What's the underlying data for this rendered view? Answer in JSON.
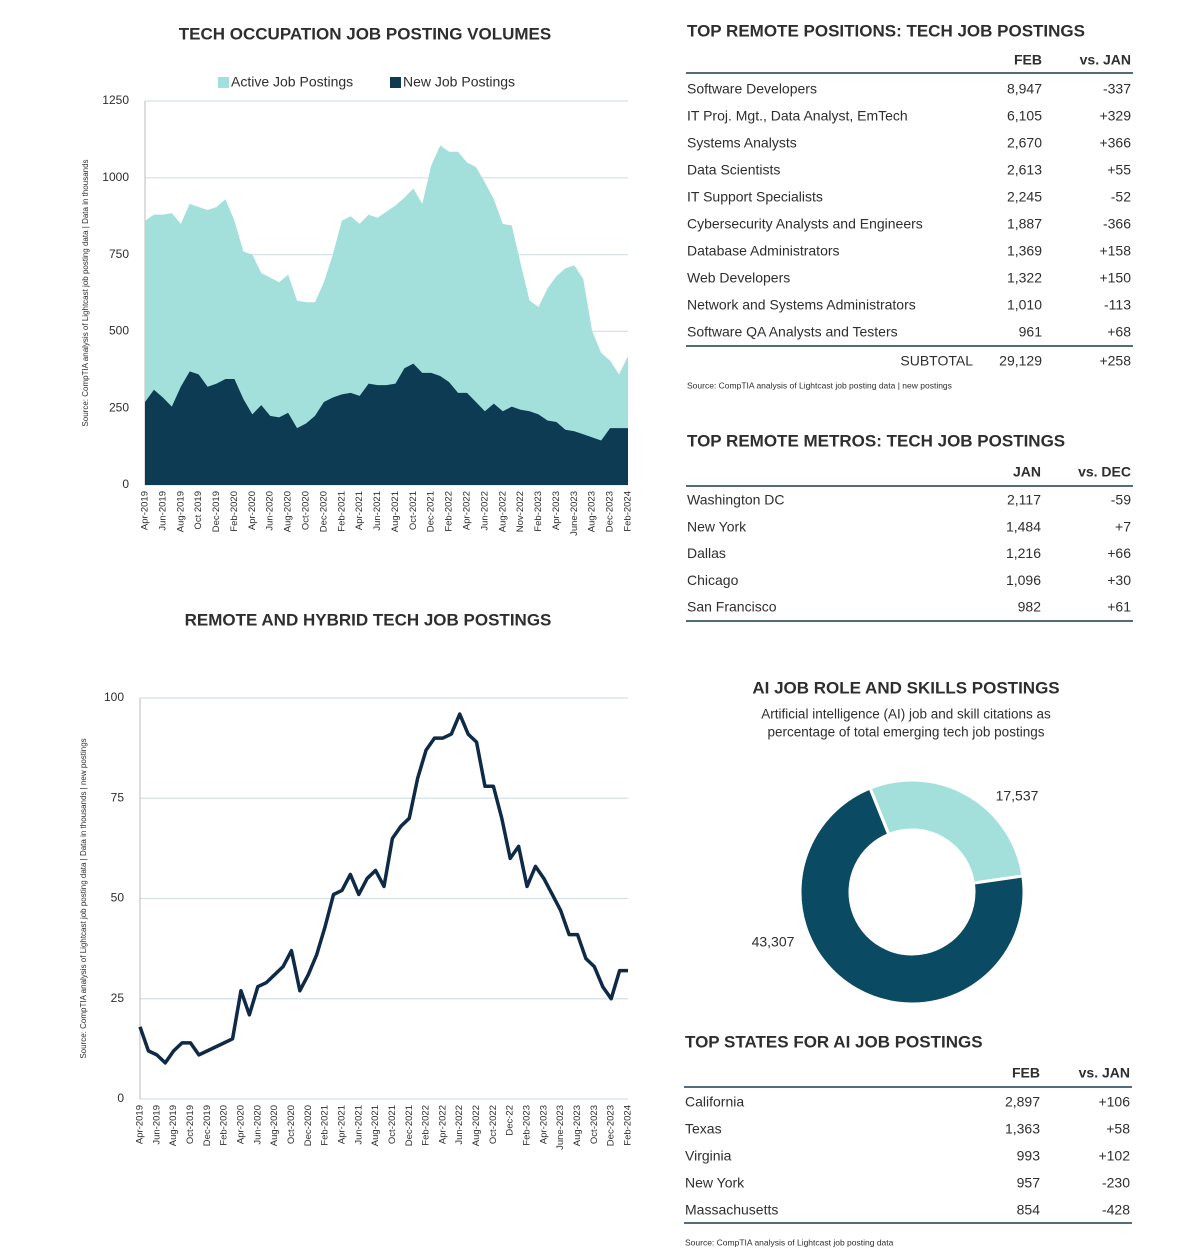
{
  "chart_data": [
    {
      "type": "area",
      "title": "TECH OCCUPATION JOB POSTING VOLUMES",
      "ylabel": "Source: CompTIA analysis of Lightcast job posting data | Data in thousands",
      "categories": [
        "Apr-2019",
        null,
        "Jun-2019",
        null,
        "Aug-2019",
        null,
        "Oct 2019",
        null,
        "Dec-2019",
        null,
        "Feb-2020",
        null,
        "Apr-2020",
        null,
        "Jun-2020",
        null,
        "Aug-2020",
        null,
        "Oct-2020",
        null,
        "Dec-2020",
        null,
        "Feb-2021",
        null,
        "Apr-2021",
        null,
        "Jun-2021",
        null,
        "Aug-2021",
        null,
        "Oct-2021",
        null,
        "Dec-2021",
        null,
        "Feb-2022",
        null,
        "Apr-2022",
        null,
        "Jun-2022",
        null,
        "Aug-2022",
        null,
        "Nov-2022",
        null,
        "Feb-2023",
        null,
        "Apr-2023",
        null,
        "June-2023",
        null,
        "Aug-2023",
        null,
        "Dec-2023",
        null,
        "Feb-2024"
      ],
      "series": [
        {
          "name": "Active Job Postings",
          "color": "#a3e0dc",
          "values": [
            860,
            880,
            880,
            885,
            850,
            915,
            905,
            895,
            905,
            930,
            860,
            760,
            750,
            690,
            675,
            660,
            685,
            600,
            595,
            595,
            660,
            750,
            860,
            875,
            850,
            880,
            870,
            890,
            910,
            935,
            965,
            915,
            1040,
            1105,
            1085,
            1085,
            1050,
            1035,
            985,
            930,
            850,
            845,
            720,
            600,
            580,
            640,
            680,
            705,
            715,
            670,
            500,
            430,
            405,
            360,
            420
          ]
        },
        {
          "name": "New Job Postings",
          "color": "#0d3b54",
          "values": [
            270,
            310,
            285,
            255,
            320,
            370,
            360,
            320,
            330,
            345,
            345,
            280,
            230,
            260,
            225,
            220,
            235,
            185,
            200,
            225,
            270,
            285,
            295,
            300,
            290,
            330,
            325,
            325,
            330,
            380,
            395,
            365,
            365,
            355,
            335,
            300,
            300,
            270,
            240,
            265,
            240,
            255,
            245,
            240,
            230,
            210,
            205,
            180,
            175,
            165,
            155,
            145,
            185,
            185,
            185
          ]
        }
      ],
      "ylim": [
        0,
        1250
      ],
      "yticks": [
        0,
        250,
        500,
        750,
        1000,
        1250
      ],
      "grid": true
    },
    {
      "type": "line",
      "title": "REMOTE AND HYBRID TECH JOB POSTINGS",
      "ylabel": "Source: CompTIA analysis of Lightcast job posting data | Data in thousands | new postings",
      "categories": [
        "Apr-2019",
        null,
        "Jun-2019",
        null,
        "Aug-2019",
        null,
        "Oct-2019",
        null,
        "Dec-2019",
        null,
        "Feb-2020",
        null,
        "Apr-2020",
        null,
        "Jun-2020",
        null,
        "Aug-2020",
        null,
        "Oct-2020",
        null,
        "Dec-2020",
        null,
        "Feb-2021",
        null,
        "Apr-2021",
        null,
        "Jun-2021",
        null,
        "Aug-2021",
        null,
        "Oct-2021",
        null,
        "Dec-2021",
        null,
        "Feb-2022",
        null,
        "Apr-2022",
        null,
        "Jun-2022",
        null,
        "Aug-2022",
        null,
        "Oct-2022",
        null,
        "Dec-22",
        null,
        "Feb-2023",
        null,
        "Apr-2023",
        null,
        "June-2023",
        null,
        "Aug-2023",
        null,
        "Oct-2023",
        null,
        "Dec-2023",
        null,
        "Feb-2024"
      ],
      "series": [
        {
          "name": "Remote and Hybrid",
          "color": "#0f2a47",
          "values": [
            18,
            12,
            11,
            9,
            12,
            14,
            14,
            11,
            12,
            13,
            14,
            15,
            27,
            21,
            28,
            29,
            31,
            33,
            37,
            27,
            31,
            36,
            43,
            51,
            52,
            56,
            51,
            55,
            57,
            53,
            65,
            68,
            70,
            80,
            87,
            90,
            90,
            91,
            96,
            91,
            89,
            78,
            78,
            70,
            60,
            63,
            53,
            58,
            55,
            51,
            47,
            41,
            41,
            35,
            33,
            28,
            25,
            32,
            32
          ]
        }
      ],
      "ylim": [
        0,
        100
      ],
      "yticks": [
        0,
        25,
        50,
        75,
        100
      ],
      "grid": true
    },
    {
      "type": "pie",
      "title": "AI JOB ROLE AND SKILLS POSTINGS",
      "subtitle": [
        "Artificial intelligence (AI) job and skill citations as",
        "percentage of total emerging tech job postings"
      ],
      "values": [
        17537,
        43307
      ],
      "value_labels": [
        "17,537",
        "43,307"
      ],
      "colors": [
        "#a3e0dc",
        "#0b4a63"
      ]
    }
  ],
  "tables": [
    {
      "title": "TOP REMOTE POSITIONS: TECH JOB POSTINGS",
      "columns": [
        "FEB",
        "vs. JAN"
      ],
      "rows": [
        [
          "Software Developers",
          "8,947",
          "-337"
        ],
        [
          "IT Proj. Mgt., Data Analyst, EmTech",
          "6,105",
          "+329"
        ],
        [
          "Systems Analysts",
          "2,670",
          "+366"
        ],
        [
          "Data Scientists",
          "2,613",
          "+55"
        ],
        [
          "IT Support Specialists",
          "2,245",
          "-52"
        ],
        [
          "Cybersecurity Analysts and Engineers",
          "1,887",
          "-366"
        ],
        [
          "Database Administrators",
          "1,369",
          "+158"
        ],
        [
          "Web Developers",
          "1,322",
          "+150"
        ],
        [
          "Network and Systems Administrators",
          "1,010",
          "-113"
        ],
        [
          "Software QA Analysts and Testers",
          "961",
          "+68"
        ]
      ],
      "subtotal": [
        "SUBTOTAL",
        "29,129",
        "+258"
      ],
      "source": "Source: CompTIA analysis of Lightcast job posting data | new postings"
    },
    {
      "title": "TOP REMOTE METROS: TECH JOB POSTINGS",
      "columns": [
        "JAN",
        "vs. DEC"
      ],
      "rows": [
        [
          "Washington DC",
          "2,117",
          "-59"
        ],
        [
          "New York",
          "1,484",
          "+7"
        ],
        [
          "Dallas",
          "1,216",
          "+66"
        ],
        [
          "Chicago",
          "1,096",
          "+30"
        ],
        [
          "San Francisco",
          "982",
          "+61"
        ]
      ]
    },
    {
      "title": "TOP STATES FOR AI JOB POSTINGS",
      "columns": [
        "FEB",
        "vs. JAN"
      ],
      "rows": [
        [
          "California",
          "2,897",
          "+106"
        ],
        [
          "Texas",
          "1,363",
          "+58"
        ],
        [
          "Virginia",
          "993",
          "+102"
        ],
        [
          "New York",
          "957",
          "-230"
        ],
        [
          "Massachusetts",
          "854",
          "-428"
        ]
      ],
      "source": "Source: CompTIA analysis of Lightcast job posting data"
    }
  ]
}
